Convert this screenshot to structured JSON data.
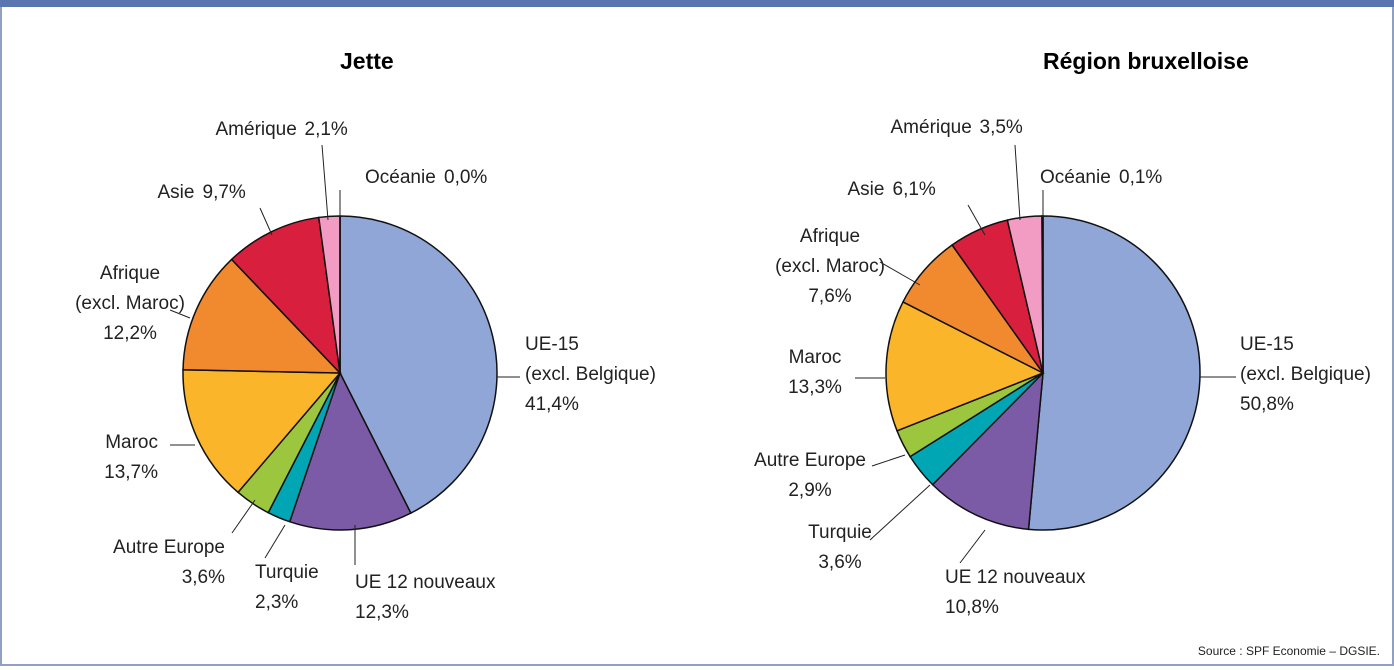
{
  "chart_data": [
    {
      "type": "pie",
      "title": "Jette",
      "categories": [
        "UE-15\n(excl. Belgique)",
        "UE 12 nouveaux",
        "Turquie",
        "Autre Europe",
        "Maroc",
        "Afrique\n(excl. Maroc)",
        "Asie",
        "Amérique",
        "Océanie"
      ],
      "values": [
        41.4,
        12.3,
        2.3,
        3.6,
        13.7,
        12.2,
        9.7,
        2.1,
        0.0
      ],
      "value_labels": [
        "41,4%",
        "12,3%",
        "2,3%",
        "3,6%",
        "13,7%",
        "12,2%",
        "9,7%",
        "2,1%",
        "0,0%"
      ],
      "colors": [
        "#8fa6d6",
        "#7b5aa6",
        "#00a6b4",
        "#9dc63f",
        "#fbb52b",
        "#f18a2f",
        "#d8203e",
        "#f29cc4",
        "#333333"
      ]
    },
    {
      "type": "pie",
      "title": "Région bruxelloise",
      "categories": [
        "UE-15\n(excl. Belgique)",
        "UE 12 nouveaux",
        "Turquie",
        "Autre Europe",
        "Maroc",
        "Afrique\n(excl. Maroc)",
        "Asie",
        "Amérique",
        "Océanie"
      ],
      "values": [
        50.8,
        10.8,
        3.6,
        2.9,
        13.3,
        7.6,
        6.1,
        3.5,
        0.1
      ],
      "value_labels": [
        "50,8%",
        "10,8%",
        "3,6%",
        "2,9%",
        "13,3%",
        "7,6%",
        "6,1%",
        "3,5%",
        "0,1%"
      ],
      "colors": [
        "#8fa6d6",
        "#7b5aa6",
        "#00a6b4",
        "#9dc63f",
        "#fbb52b",
        "#f18a2f",
        "#d8203e",
        "#f29cc4",
        "#333333"
      ]
    }
  ],
  "source": "Source : SPF Economie – DGSIE."
}
